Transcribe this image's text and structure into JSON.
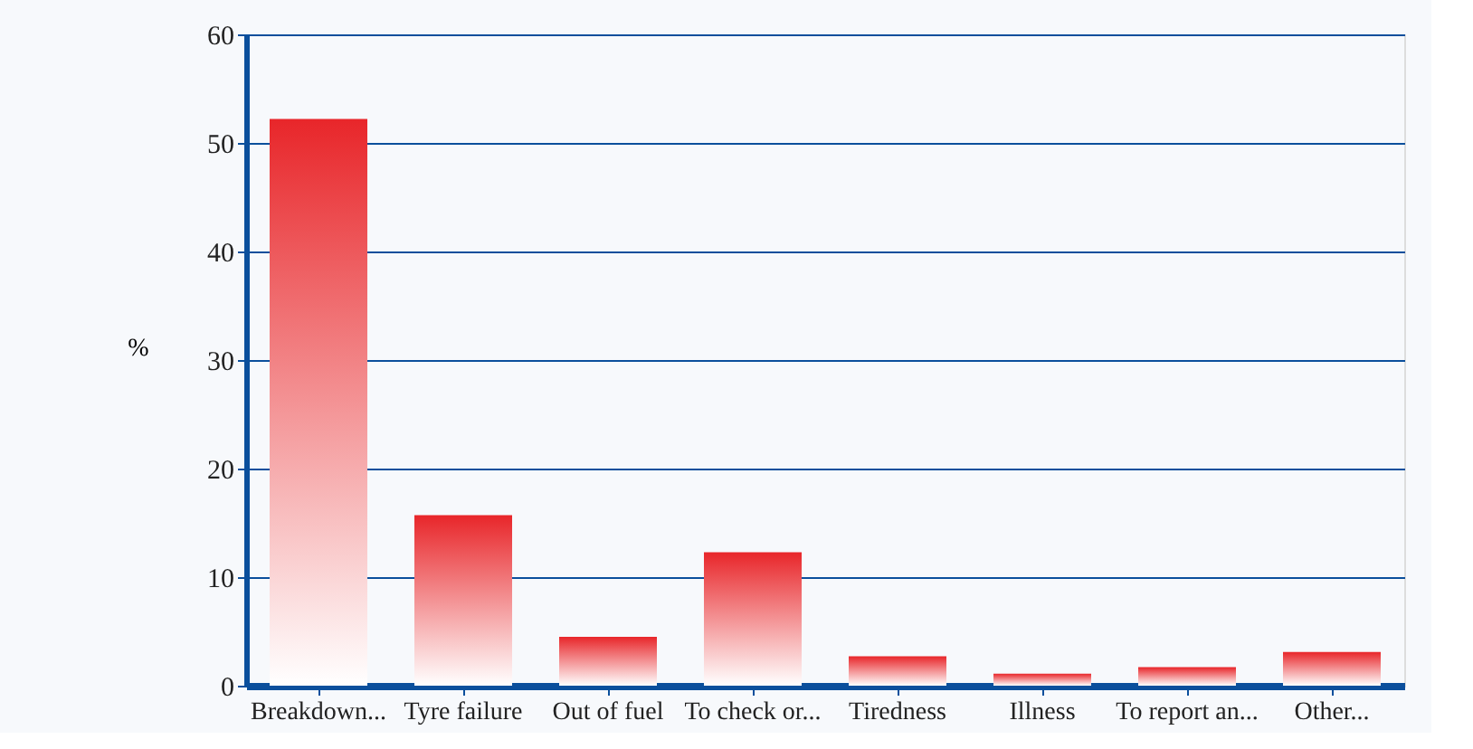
{
  "chart_data": {
    "type": "bar",
    "ylabel": "%",
    "categories": [
      "Breakdown...",
      "Tyre failure",
      "Out of fuel",
      "To check or...",
      "Tiredness",
      "Illness",
      "To report an...",
      "Other..."
    ],
    "values": [
      52.2,
      15.7,
      4.5,
      12.3,
      2.7,
      1.1,
      1.7,
      3.1
    ],
    "color": "#e8262a",
    "ylim": [
      0,
      60
    ],
    "yticks": [
      0,
      10,
      20,
      30,
      40,
      50,
      60
    ],
    "grid": "y"
  }
}
